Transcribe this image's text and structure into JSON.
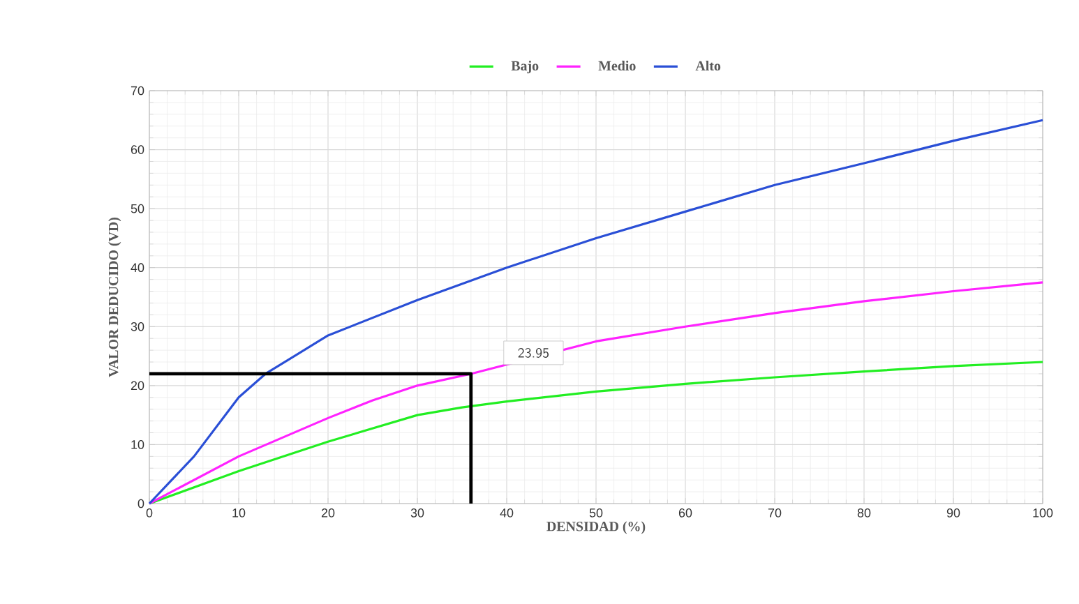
{
  "chart_data": {
    "type": "line",
    "xlabel": "DENSIDAD (%)",
    "ylabel": "VALOR DEDUCIDO  (VD)",
    "xlim": [
      0,
      100
    ],
    "ylim": [
      0,
      70
    ],
    "xticks": [
      0,
      10,
      20,
      30,
      40,
      50,
      60,
      70,
      80,
      90,
      100
    ],
    "yticks": [
      0,
      10,
      20,
      30,
      40,
      50,
      60,
      70
    ],
    "grid": true,
    "legend": "top",
    "marker": "none",
    "line_style": "solid",
    "annotations": [
      "23.95"
    ],
    "series": [
      {
        "name": "Bajo",
        "color": "#22ee22",
        "x": [
          0,
          10,
          20,
          30,
          35,
          40,
          50,
          60,
          70,
          80,
          90,
          100
        ],
        "values": [
          0,
          5.5,
          10.5,
          15,
          16.3,
          17.3,
          19,
          20.3,
          21.4,
          22.4,
          23.3,
          24
        ]
      },
      {
        "name": "Medio",
        "color": "#ff22ff",
        "x": [
          0,
          10,
          20,
          25,
          30,
          36,
          50,
          60,
          70,
          80,
          90,
          100
        ],
        "values": [
          0,
          8,
          14.5,
          17.5,
          20,
          22,
          27.5,
          30,
          32.3,
          34.3,
          36,
          37.5
        ]
      },
      {
        "name": "Alto",
        "color": "#2a4fd6",
        "x": [
          0,
          5,
          10,
          13,
          20,
          30,
          40,
          50,
          60,
          70,
          80,
          90,
          100
        ],
        "values": [
          0,
          8,
          18,
          22,
          28.5,
          34.5,
          40,
          45,
          49.5,
          54,
          57.7,
          61.5,
          65
        ]
      },
      {
        "color": "#000000",
        "x": [
          0,
          36,
          36
        ],
        "values": [
          22,
          22,
          0
        ]
      }
    ]
  }
}
